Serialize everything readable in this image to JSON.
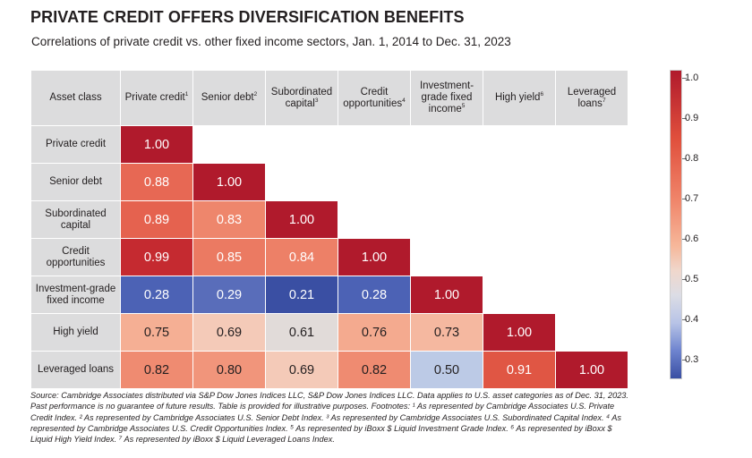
{
  "title": "PRIVATE CREDIT OFFERS DIVERSIFICATION BENEFITS",
  "subtitle": "Correlations of private credit vs. other fixed income sectors, Jan. 1, 2014 to Dec. 31, 2023",
  "chart_data": {
    "type": "heatmap",
    "corner_label": "Asset class",
    "columns": [
      {
        "lines": [
          "Private credit"
        ],
        "sup": "1"
      },
      {
        "lines": [
          "Senior debt"
        ],
        "sup": "2"
      },
      {
        "lines": [
          "Subordinated",
          "capital"
        ],
        "sup": "3"
      },
      {
        "lines": [
          "Credit",
          "opportunities"
        ],
        "sup": "4"
      },
      {
        "lines": [
          "Investment-",
          "grade fixed",
          "income"
        ],
        "sup": "5"
      },
      {
        "lines": [
          "High yield"
        ],
        "sup": "6"
      },
      {
        "lines": [
          "Leveraged",
          "loans"
        ],
        "sup": "7"
      }
    ],
    "rows": [
      {
        "lines": [
          "Private credit"
        ],
        "values": [
          "1.00"
        ]
      },
      {
        "lines": [
          "Senior debt"
        ],
        "values": [
          "0.88",
          "1.00"
        ]
      },
      {
        "lines": [
          "Subordinated",
          "capital"
        ],
        "values": [
          "0.89",
          "0.83",
          "1.00"
        ]
      },
      {
        "lines": [
          "Credit",
          "opportunities"
        ],
        "values": [
          "0.99",
          "0.85",
          "0.84",
          "1.00"
        ]
      },
      {
        "lines": [
          "Investment-grade",
          "fixed income"
        ],
        "values": [
          "0.28",
          "0.29",
          "0.21",
          "0.28",
          "1.00"
        ]
      },
      {
        "lines": [
          "High yield"
        ],
        "values": [
          "0.75",
          "0.69",
          "0.61",
          "0.76",
          "0.73",
          "1.00"
        ]
      },
      {
        "lines": [
          "Leveraged loans"
        ],
        "values": [
          "0.82",
          "0.80",
          "0.69",
          "0.82",
          "0.50",
          "0.91",
          "1.00"
        ]
      }
    ],
    "colorbar": {
      "range": [
        0.25,
        1.02
      ],
      "ticks": [
        "1.0",
        "0.9",
        "0.8",
        "0.7",
        "0.6",
        "0.5",
        "0.4",
        "0.3"
      ]
    },
    "colors": {
      "high": "#b01a2c",
      "mid_high": "#e65f4b",
      "mid": "#f6b79a",
      "neutral": "#dcdde5",
      "low": "#3a4fa3"
    }
  },
  "source_lines": [
    "Source: Cambridge Associates distributed via S&P Dow Jones Indices LLC, S&P Dow Jones Indices LLC. Data applies to U.S. asset categories as of Dec. 31, 2023.",
    "Past performance is no guarantee of future results. Table is provided for illustrative purposes. Footnotes: ¹ As represented by Cambridge Associates U.S. Private",
    "Credit Index. ² As represented by Cambridge Associates U.S. Senior Debt Index. ³ As represented by Cambridge Associates U.S. Subordinated Capital Index. ⁴ As",
    "represented by Cambridge Associates U.S. Credit Opportunities Index. ⁵ As represented by iBoxx $ Liquid Investment Grade Index. ⁶ As represented by iBoxx $",
    "Liquid High Yield Index. ⁷ As represented by iBoxx $ Liquid Leveraged Loans Index."
  ]
}
